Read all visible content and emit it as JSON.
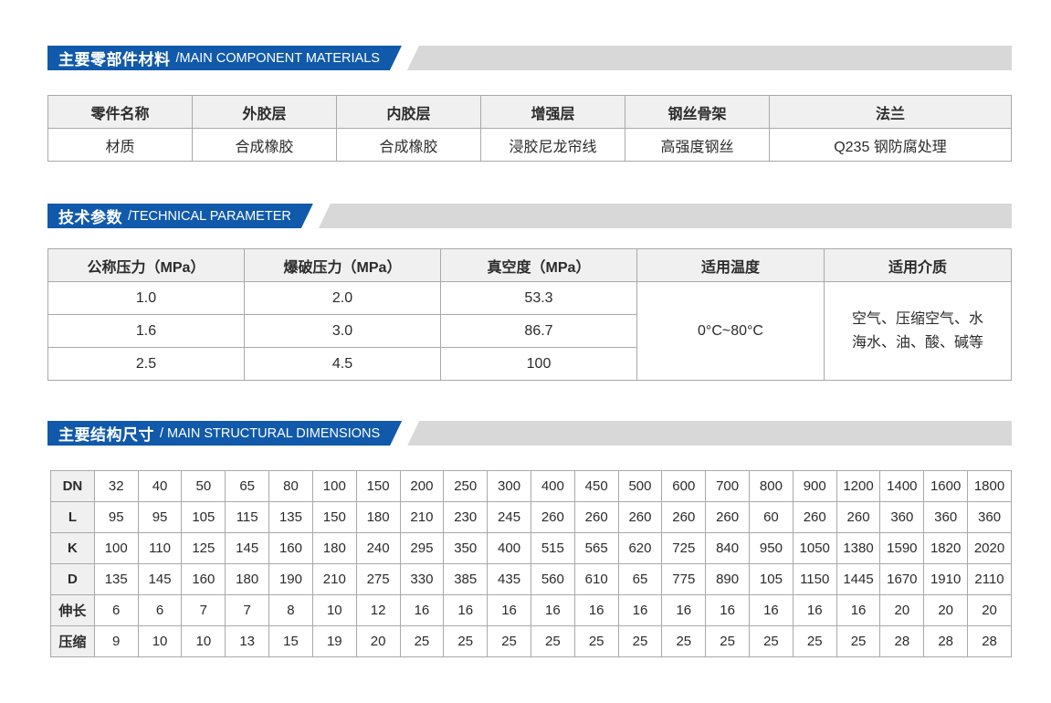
{
  "colors": {
    "banner_blue": "#1159aa",
    "banner_gray": "#d8d8d8",
    "table_header_bg": "#f0f0f0",
    "table_border": "#a9a9a9",
    "banner_text": "#ffffff"
  },
  "sections": {
    "materials": {
      "title_zh": "主要零部件材料",
      "title_en": "/MAIN COMPONENT MATERIALS",
      "table": {
        "headers": [
          "零件名称",
          "外胶层",
          "内胶层",
          "增强层",
          "钢丝骨架",
          "法兰"
        ],
        "row": [
          "材质",
          "合成橡胶",
          "合成橡胶",
          "浸胶尼龙帘线",
          "高强度钢丝",
          "Q235 钢防腐处理"
        ]
      }
    },
    "technical": {
      "title_zh": "技术参数",
      "title_en": "/TECHNICAL PARAMETER",
      "table": {
        "headers": [
          "公称压力（MPa）",
          "爆破压力（MPa）",
          "真空度（MPa）",
          "适用温度",
          "适用介质"
        ],
        "rows": [
          [
            "1.0",
            "2.0",
            "53.3"
          ],
          [
            "1.6",
            "3.0",
            "86.7"
          ],
          [
            "2.5",
            "4.5",
            "100"
          ]
        ],
        "temperature": "0°C~80°C",
        "media": [
          "空气、压缩空气、水",
          "海水、油、酸、碱等"
        ]
      }
    },
    "dimensions": {
      "title_zh": "主要结构尺寸",
      "title_en": "/ MAIN STRUCTURAL DIMENSIONS",
      "table": {
        "row_labels": [
          "DN",
          "L",
          "K",
          "D",
          "伸长",
          "压缩"
        ],
        "rows": [
          [
            "32",
            "40",
            "50",
            "65",
            "80",
            "100",
            "150",
            "200",
            "250",
            "300",
            "400",
            "450",
            "500",
            "600",
            "700",
            "800",
            "900",
            "1200",
            "1400",
            "1600",
            "1800"
          ],
          [
            "95",
            "95",
            "105",
            "115",
            "135",
            "150",
            "180",
            "210",
            "230",
            "245",
            "260",
            "260",
            "260",
            "260",
            "260",
            "60",
            "260",
            "260",
            "360",
            "360",
            "360"
          ],
          [
            "100",
            "110",
            "125",
            "145",
            "160",
            "180",
            "240",
            "295",
            "350",
            "400",
            "515",
            "565",
            "620",
            "725",
            "840",
            "950",
            "1050",
            "1380",
            "1590",
            "1820",
            "2020"
          ],
          [
            "135",
            "145",
            "160",
            "180",
            "190",
            "210",
            "275",
            "330",
            "385",
            "435",
            "560",
            "610",
            "65",
            "775",
            "890",
            "105",
            "1150",
            "1445",
            "1670",
            "1910",
            "2110"
          ],
          [
            "6",
            "6",
            "7",
            "7",
            "8",
            "10",
            "12",
            "16",
            "16",
            "16",
            "16",
            "16",
            "16",
            "16",
            "16",
            "16",
            "16",
            "16",
            "20",
            "20",
            "20"
          ],
          [
            "9",
            "10",
            "10",
            "13",
            "15",
            "19",
            "20",
            "25",
            "25",
            "25",
            "25",
            "25",
            "25",
            "25",
            "25",
            "25",
            "25",
            "25",
            "28",
            "28",
            "28"
          ]
        ]
      }
    }
  }
}
